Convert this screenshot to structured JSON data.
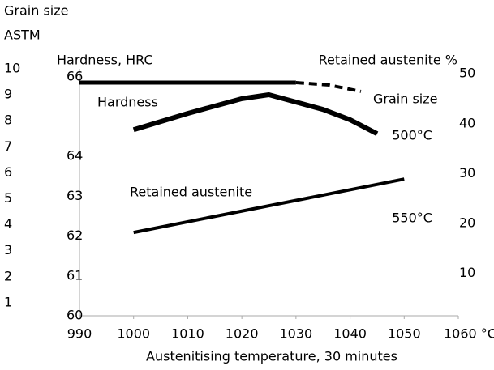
{
  "chart_data": {
    "type": "line",
    "axis_labels": {
      "grain_title": "Grain size",
      "grain_unit": "ASTM",
      "hardness": "Hardness, HRC",
      "retained": "Retained austenite %",
      "x": "Austenitising temperature, 30 minutes"
    },
    "annotations": [
      {
        "text": "500°C",
        "x": 1044,
        "axis": "y2",
        "y": 37.5
      },
      {
        "text": "550°C",
        "x": 1044,
        "axis": "y2",
        "y": 21
      }
    ],
    "xlim": [
      990,
      1060
    ],
    "xticks": [
      990,
      1000,
      1010,
      1020,
      1030,
      1040,
      1050,
      {
        "value": 1060,
        "label": "1060 °C"
      }
    ],
    "ylim": [
      60,
      66.2
    ],
    "yticks": [
      60,
      61,
      62,
      63,
      64,
      66
    ],
    "y2lim": [
      1.5,
      51
    ],
    "y2ticks": [
      10,
      20,
      30,
      40,
      50
    ],
    "y3lim": [
      0.5,
      10
    ],
    "y3ticks": [
      1,
      2,
      3,
      4,
      5,
      6,
      7,
      8,
      9,
      10
    ],
    "series": [
      {
        "name": "Hardness",
        "color": "#000000",
        "width": 6,
        "x": [
          1000,
          1010,
          1020,
          1025,
          1035,
          1040,
          1045
        ],
        "values": [
          64.67,
          65.08,
          65.45,
          65.55,
          65.18,
          64.92,
          64.57
        ]
      },
      {
        "name": "Retained austenite",
        "color": "#000000",
        "width": 4,
        "axis": "y2",
        "x": [
          1000,
          1050
        ],
        "values": [
          18.2,
          28.9
        ]
      },
      {
        "name": "Grain size",
        "color": "#000000",
        "width": 5,
        "axis": "y3",
        "x": [
          990,
          1000,
          1010,
          1020,
          1030
        ],
        "values": [
          9.47,
          9.47,
          9.47,
          9.47,
          9.47
        ]
      },
      {
        "color": "#000000",
        "width": 4,
        "axis": "y3",
        "dashed": true,
        "x": [
          1030,
          1036,
          1042
        ],
        "values": [
          9.47,
          9.38,
          9.13
        ]
      }
    ]
  }
}
